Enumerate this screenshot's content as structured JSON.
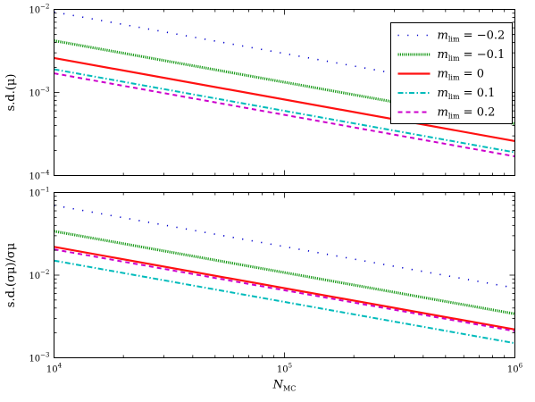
{
  "chart_data": [
    {
      "type": "line",
      "xscale": "log",
      "yscale": "log",
      "xlim": [
        10000,
        1000000
      ],
      "ylim": [
        0.0001,
        0.01
      ],
      "ylabel": "s.d.(μ)",
      "yticks": [
        {
          "value": 0.0001,
          "mant": "10",
          "exp": "−4"
        },
        {
          "value": 0.001,
          "mant": "10",
          "exp": "−3"
        },
        {
          "value": 0.01,
          "mant": "10",
          "exp": "−2"
        }
      ],
      "grid": false,
      "legend": {
        "location": "top-right",
        "entries": [
          {
            "prefix": "m",
            "sub": "lim",
            "value": " = −0.2"
          },
          {
            "prefix": "m",
            "sub": "lim",
            "value": " = −0.1"
          },
          {
            "prefix": "m",
            "sub": "lim",
            "value": " = 0"
          },
          {
            "prefix": "m",
            "sub": "lim",
            "value": " = 0.1"
          },
          {
            "prefix": "m",
            "sub": "lim",
            "value": " = 0.2"
          }
        ]
      },
      "series": [
        {
          "name": "m_lim = −0.2",
          "color": "#0000cc",
          "style": "dotted",
          "x": [
            10000,
            1000000
          ],
          "y": [
            0.0093,
            0.00093
          ]
        },
        {
          "name": "m_lim = −0.1",
          "color": "#1a9a1a",
          "style": "dense-dotted",
          "x": [
            10000,
            1000000
          ],
          "y": [
            0.0042,
            0.00042
          ]
        },
        {
          "name": "m_lim = 0",
          "color": "#ff1111",
          "style": "solid",
          "x": [
            10000,
            1000000
          ],
          "y": [
            0.0026,
            0.00026
          ]
        },
        {
          "name": "m_lim = 0.1",
          "color": "#00bbbb",
          "style": "dash-dot",
          "x": [
            10000,
            1000000
          ],
          "y": [
            0.0019,
            0.00019
          ]
        },
        {
          "name": "m_lim = 0.2",
          "color": "#cc00cc",
          "style": "dashed",
          "x": [
            10000,
            1000000
          ],
          "y": [
            0.0017,
            0.00017
          ]
        }
      ]
    },
    {
      "type": "line",
      "xscale": "log",
      "yscale": "log",
      "xlim": [
        10000,
        1000000
      ],
      "ylim": [
        0.001,
        0.1
      ],
      "xlabel": "N",
      "xlabel_sub": "MC",
      "ylabel": "s.d.(σμ)/σμ",
      "xticks": [
        {
          "value": 10000,
          "mant": "10",
          "exp": "4"
        },
        {
          "value": 100000,
          "mant": "10",
          "exp": "5"
        },
        {
          "value": 1000000,
          "mant": "10",
          "exp": "6"
        }
      ],
      "yticks": [
        {
          "value": 0.001,
          "mant": "10",
          "exp": "−3"
        },
        {
          "value": 0.01,
          "mant": "10",
          "exp": "−2"
        },
        {
          "value": 0.1,
          "mant": "10",
          "exp": "−1"
        }
      ],
      "grid": false,
      "series": [
        {
          "name": "m_lim = −0.2",
          "color": "#0000cc",
          "style": "dotted",
          "x": [
            10000,
            1000000
          ],
          "y": [
            0.07,
            0.007
          ]
        },
        {
          "name": "m_lim = −0.1",
          "color": "#1a9a1a",
          "style": "dense-dotted",
          "x": [
            10000,
            1000000
          ],
          "y": [
            0.034,
            0.0034
          ]
        },
        {
          "name": "m_lim = 0",
          "color": "#ff1111",
          "style": "solid",
          "x": [
            10000,
            1000000
          ],
          "y": [
            0.022,
            0.0022
          ]
        },
        {
          "name": "m_lim = 0.1",
          "color": "#00bbbb",
          "style": "dash-dot",
          "x": [
            10000,
            1000000
          ],
          "y": [
            0.015,
            0.0015
          ]
        },
        {
          "name": "m_lim = 0.2",
          "color": "#cc00cc",
          "style": "dashed",
          "x": [
            10000,
            1000000
          ],
          "y": [
            0.0205,
            0.0021
          ]
        }
      ]
    }
  ]
}
